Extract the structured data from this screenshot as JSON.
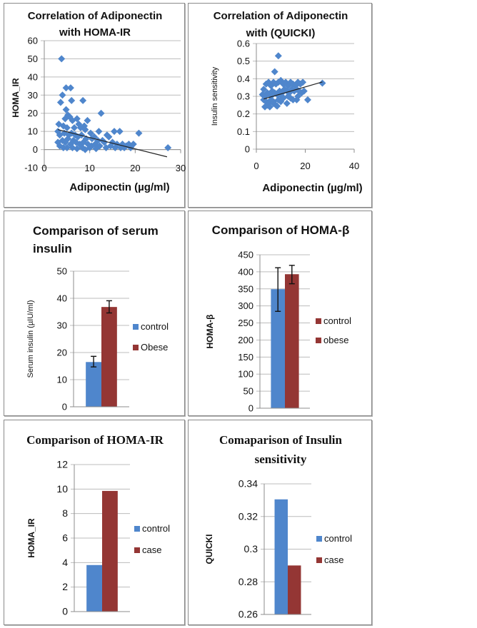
{
  "palette": {
    "series_blue": "#4f86cc",
    "series_red": "#943634",
    "grid": "#bcbcbc",
    "axis": "#8c8c8c",
    "trend": "#222222",
    "text": "#111111"
  },
  "chart_data": [
    {
      "id": "p1",
      "type": "scatter",
      "title": "Correlation of Adiponectin with HOMA-IR",
      "title_lines": [
        "Correlation of Adiponectin",
        "with HOMA-IR"
      ],
      "xlabel": "Adiponectin (µg/ml)",
      "ylabel": "HOMA_IR",
      "xlim": [
        0,
        30
      ],
      "ylim": [
        -10,
        60
      ],
      "xticks": [
        0,
        10,
        20,
        30
      ],
      "yticks": [
        -10,
        0,
        10,
        20,
        30,
        40,
        50,
        60
      ],
      "grid": true,
      "trendline": {
        "x": [
          3,
          27
        ],
        "y": [
          11,
          -4
        ]
      },
      "points": [
        [
          3.8,
          50
        ],
        [
          4.8,
          34
        ],
        [
          5.8,
          34
        ],
        [
          4.0,
          30
        ],
        [
          3.6,
          26
        ],
        [
          6.0,
          27
        ],
        [
          8.5,
          27
        ],
        [
          12.5,
          20
        ],
        [
          4.8,
          22
        ],
        [
          5.2,
          19
        ],
        [
          4.6,
          17
        ],
        [
          5.6,
          18
        ],
        [
          6.2,
          16
        ],
        [
          7.2,
          17
        ],
        [
          9.5,
          16
        ],
        [
          8.8,
          13
        ],
        [
          3.2,
          14
        ],
        [
          4.2,
          13
        ],
        [
          5.0,
          12
        ],
        [
          6.6,
          12
        ],
        [
          7.6,
          14
        ],
        [
          8.0,
          12
        ],
        [
          9.0,
          11
        ],
        [
          10.2,
          9
        ],
        [
          12.0,
          10
        ],
        [
          15.4,
          10
        ],
        [
          16.6,
          10
        ],
        [
          20.8,
          9
        ],
        [
          13.8,
          8
        ],
        [
          14.2,
          7
        ],
        [
          11.0,
          7
        ],
        [
          10.5,
          6
        ],
        [
          3.0,
          10
        ],
        [
          3.4,
          8
        ],
        [
          4.4,
          9
        ],
        [
          5.4,
          8
        ],
        [
          6.0,
          9
        ],
        [
          6.8,
          8
        ],
        [
          7.4,
          7
        ],
        [
          8.2,
          8
        ],
        [
          9.2,
          6
        ],
        [
          11.8,
          5
        ],
        [
          12.8,
          5
        ],
        [
          13.2,
          4
        ],
        [
          15.0,
          4
        ],
        [
          16.0,
          3
        ],
        [
          17.2,
          3
        ],
        [
          18.6,
          3
        ],
        [
          19.6,
          3
        ],
        [
          18.0,
          2
        ],
        [
          3.0,
          4
        ],
        [
          3.4,
          2
        ],
        [
          4.0,
          5
        ],
        [
          4.6,
          4
        ],
        [
          5.2,
          6
        ],
        [
          5.8,
          3
        ],
        [
          6.4,
          5
        ],
        [
          7.0,
          4
        ],
        [
          7.8,
          3
        ],
        [
          8.6,
          4
        ],
        [
          9.6,
          3
        ],
        [
          10.4,
          2
        ],
        [
          11.2,
          3
        ],
        [
          12.2,
          2
        ],
        [
          13.6,
          1
        ],
        [
          14.6,
          2
        ],
        [
          15.6,
          1
        ],
        [
          16.8,
          1
        ],
        [
          17.6,
          1
        ],
        [
          19.0,
          1
        ],
        [
          4.2,
          1
        ],
        [
          5.0,
          1
        ],
        [
          6.2,
          1
        ],
        [
          7.2,
          0.5
        ],
        [
          8.4,
          1
        ],
        [
          9.0,
          0
        ],
        [
          10.0,
          1
        ],
        [
          11.4,
          0.5
        ],
        [
          27.2,
          1
        ]
      ]
    },
    {
      "id": "p2",
      "type": "scatter",
      "title": "Correlation of  Adiponectin with  (QUICKI)",
      "title_lines": [
        "Correlation of  Adiponectin",
        "with  (QUICKI)"
      ],
      "xlabel": "Adiponectin (µg/ml)",
      "ylabel": "Insulin sensitivity",
      "xlim": [
        0,
        40
      ],
      "ylim": [
        0,
        0.6
      ],
      "xticks": [
        0,
        20,
        40
      ],
      "yticks": [
        0,
        0.1,
        0.2,
        0.3,
        0.4,
        0.5,
        0.6
      ],
      "grid": true,
      "trendline": {
        "x": [
          3,
          27
        ],
        "y": [
          0.285,
          0.382
        ]
      },
      "points": [
        [
          9.0,
          0.53
        ],
        [
          7.5,
          0.44
        ],
        [
          27.0,
          0.375
        ],
        [
          21.0,
          0.28
        ],
        [
          3.0,
          0.34
        ],
        [
          4.0,
          0.37
        ],
        [
          5.0,
          0.38
        ],
        [
          6.0,
          0.36
        ],
        [
          7.0,
          0.38
        ],
        [
          8.0,
          0.37
        ],
        [
          9.0,
          0.38
        ],
        [
          10.0,
          0.39
        ],
        [
          11.0,
          0.37
        ],
        [
          12.0,
          0.38
        ],
        [
          13.0,
          0.36
        ],
        [
          14.0,
          0.38
        ],
        [
          15.0,
          0.37
        ],
        [
          16.0,
          0.36
        ],
        [
          17.0,
          0.38
        ],
        [
          18.0,
          0.37
        ],
        [
          19.0,
          0.38
        ],
        [
          19.5,
          0.33
        ],
        [
          18.5,
          0.32
        ],
        [
          2.5,
          0.31
        ],
        [
          3.5,
          0.3
        ],
        [
          4.5,
          0.32
        ],
        [
          5.5,
          0.31
        ],
        [
          6.5,
          0.33
        ],
        [
          7.5,
          0.32
        ],
        [
          8.5,
          0.31
        ],
        [
          9.5,
          0.33
        ],
        [
          10.5,
          0.32
        ],
        [
          11.5,
          0.34
        ],
        [
          12.5,
          0.33
        ],
        [
          13.5,
          0.32
        ],
        [
          14.5,
          0.34
        ],
        [
          15.5,
          0.33
        ],
        [
          16.5,
          0.34
        ],
        [
          17.5,
          0.33
        ],
        [
          3.0,
          0.28
        ],
        [
          4.0,
          0.27
        ],
        [
          5.0,
          0.26
        ],
        [
          6.0,
          0.28
        ],
        [
          7.0,
          0.27
        ],
        [
          8.0,
          0.25
        ],
        [
          9.0,
          0.28
        ],
        [
          10.0,
          0.27
        ],
        [
          11.0,
          0.29
        ],
        [
          12.5,
          0.26
        ],
        [
          14.0,
          0.29
        ],
        [
          15.0,
          0.28
        ],
        [
          16.5,
          0.28
        ],
        [
          3.5,
          0.24
        ],
        [
          4.5,
          0.25
        ],
        [
          5.5,
          0.24
        ],
        [
          7.0,
          0.26
        ],
        [
          8.5,
          0.245
        ],
        [
          6.0,
          0.3
        ],
        [
          10.5,
          0.3
        ],
        [
          13.0,
          0.3
        ],
        [
          17.0,
          0.3
        ]
      ]
    },
    {
      "id": "p3",
      "type": "bar",
      "title": "Comparison of serum insulin",
      "title_lines": [
        "Comparison of serum",
        "insulin"
      ],
      "ylabel": "Serum insulin (µIU/ml)",
      "ylim": [
        0,
        50
      ],
      "yticks": [
        0,
        10,
        20,
        30,
        40,
        50
      ],
      "grid": true,
      "legend": "right",
      "series": [
        {
          "name": "control",
          "value": 16.5,
          "error": [
            14.7,
            18.6
          ],
          "color": "#4f86cc"
        },
        {
          "name": "Obese",
          "value": 36.8,
          "error": [
            34.6,
            39.1
          ],
          "color": "#943634"
        }
      ]
    },
    {
      "id": "p4",
      "type": "bar",
      "title": "Comparison of HOMA-β",
      "title_lines": [
        "Comparison of HOMA-β"
      ],
      "ylabel": "HOMA-β",
      "ylim": [
        0,
        450
      ],
      "yticks": [
        0,
        50,
        100,
        150,
        200,
        250,
        300,
        350,
        400,
        450
      ],
      "grid": true,
      "legend": "right",
      "series": [
        {
          "name": "control",
          "value": 349,
          "error": [
            284,
            412
          ],
          "color": "#4f86cc",
          "legend_color": "#943634"
        },
        {
          "name": "obese",
          "value": 393,
          "error": [
            365,
            419
          ],
          "color": "#943634",
          "legend_color": "#943634"
        }
      ]
    },
    {
      "id": "p5",
      "type": "bar",
      "title": "Comparison of HOMA-IR",
      "title_lines": [
        "Comparison of HOMA-IR"
      ],
      "title_serif": true,
      "ylabel": "HOMA_IR",
      "ylim": [
        0,
        12
      ],
      "yticks": [
        0,
        2,
        4,
        6,
        8,
        10,
        12
      ],
      "grid": true,
      "legend": "right",
      "series": [
        {
          "name": "control",
          "value": 3.8,
          "color": "#4f86cc"
        },
        {
          "name": "case",
          "value": 9.85,
          "color": "#943634"
        }
      ]
    },
    {
      "id": "p6",
      "type": "bar",
      "title": "Comaparison of Insulin sensitivity",
      "title_lines": [
        "Comaparison of Insulin",
        "sensitivity"
      ],
      "title_serif": true,
      "ylabel": "QUICKI",
      "ylim": [
        0.26,
        0.34
      ],
      "yticks": [
        0.26,
        0.28,
        0.3,
        0.32,
        0.34
      ],
      "ytick_labels": [
        "0.26",
        "0.28",
        "0.3",
        "0.32",
        "0.34"
      ],
      "grid": true,
      "legend": "right",
      "series": [
        {
          "name": "control",
          "value": 0.3305,
          "color": "#4f86cc"
        },
        {
          "name": "case",
          "value": 0.29,
          "color": "#943634"
        }
      ]
    }
  ]
}
